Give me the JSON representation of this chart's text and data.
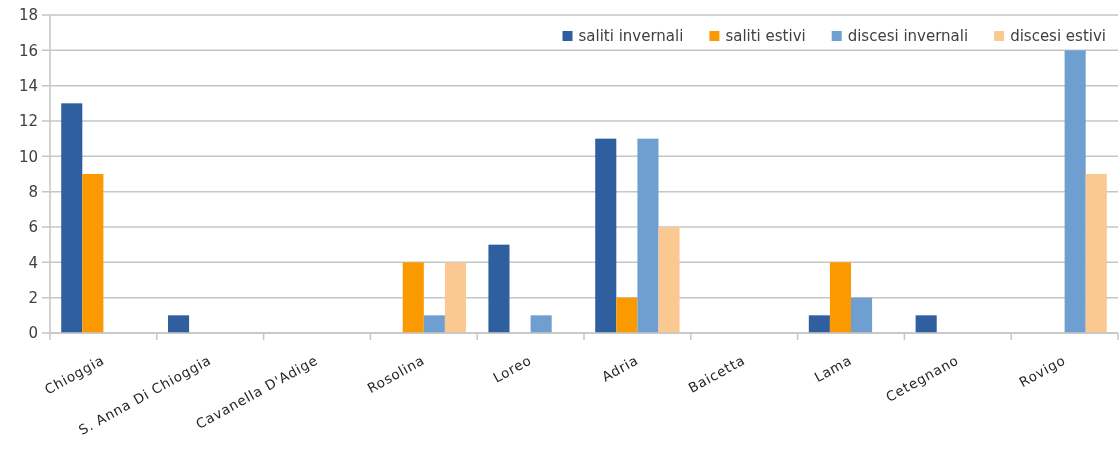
{
  "chart_data": {
    "type": "bar",
    "categories": [
      "Chioggia",
      "S. Anna Di Chioggia",
      "Cavanella D'Adige",
      "Rosolina",
      "Loreo",
      "Adria",
      "Baicetta",
      "Lama",
      "Cetegnano",
      "Rovigo"
    ],
    "series": [
      {
        "name": "saliti invernali",
        "color": "#2f5f9f",
        "values": [
          13,
          1,
          0,
          0,
          5,
          11,
          0,
          1,
          1,
          0
        ]
      },
      {
        "name": "saliti estivi",
        "color": "#fb9a00",
        "values": [
          9,
          0,
          0,
          4,
          0,
          2,
          0,
          4,
          0,
          0
        ]
      },
      {
        "name": "discesi invernali",
        "color": "#6f9fd1",
        "values": [
          0,
          0,
          0,
          1,
          1,
          11,
          0,
          2,
          0,
          16
        ]
      },
      {
        "name": "discesi estivi",
        "color": "#fcc891",
        "values": [
          0,
          0,
          0,
          4,
          0,
          6,
          0,
          0,
          0,
          9
        ]
      }
    ],
    "ylim": [
      0,
      18
    ],
    "yticks": [
      0,
      2,
      4,
      6,
      8,
      10,
      12,
      14,
      16,
      18
    ],
    "grid": "y",
    "legend": "top right"
  }
}
